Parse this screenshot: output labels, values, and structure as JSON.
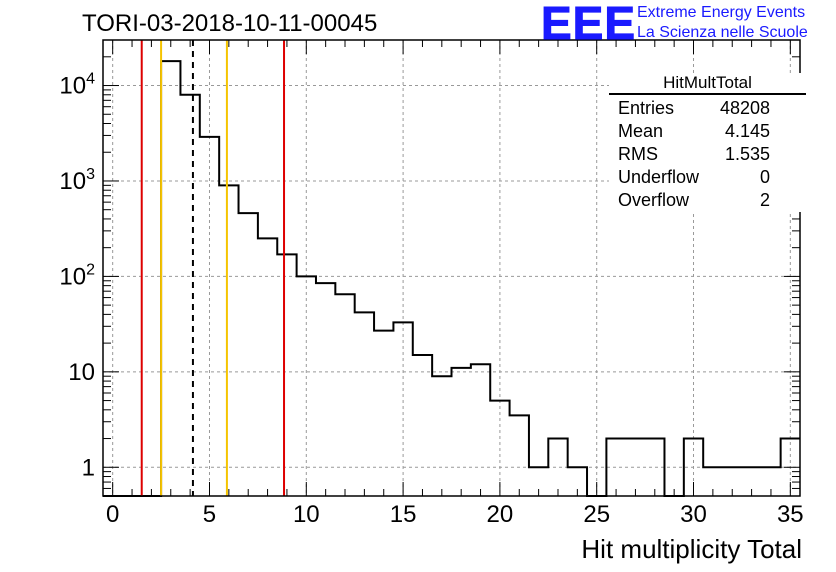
{
  "title": "TORI-03-2018-10-11-00045",
  "logo": {
    "text": "EEE",
    "line1": "Extreme Energy Events",
    "line2": "La Scienza nelle Scuole",
    "color": "#1a1aff"
  },
  "stats_box": {
    "name": "HitMultTotal",
    "rows": [
      {
        "label": "Entries",
        "value": "48208"
      },
      {
        "label": "Mean",
        "value": "4.145"
      },
      {
        "label": "RMS",
        "value": "1.535"
      },
      {
        "label": "Underflow",
        "value": "0"
      },
      {
        "label": "Overflow",
        "value": "2"
      }
    ]
  },
  "chart_data": {
    "type": "histogram",
    "title": "TORI-03-2018-10-11-00045",
    "xlabel": "Hit multiplicity Total",
    "ylabel": "",
    "xlim": [
      -0.5,
      35.5
    ],
    "ylim": [
      0.5,
      30000
    ],
    "log_y": true,
    "grid": true,
    "bin_width": 1,
    "bin_edges_start": -0.5,
    "values": [
      0,
      0,
      0,
      18000,
      8000,
      2900,
      900,
      460,
      250,
      170,
      100,
      85,
      65,
      42,
      27,
      33,
      15,
      9,
      11,
      12,
      5,
      3.5,
      1,
      2,
      1,
      0,
      2,
      2,
      2,
      0,
      2,
      1,
      1,
      1,
      1,
      2
    ],
    "x_ticks": [
      "0",
      "5",
      "10",
      "15",
      "20",
      "25",
      "30",
      "35"
    ],
    "y_ticks": [
      1,
      10,
      100,
      1000,
      10000
    ],
    "vertical_lines": [
      {
        "x": 1.5,
        "color": "#dd0000",
        "style": "solid"
      },
      {
        "x": 2.5,
        "color": "#f5c400",
        "style": "solid"
      },
      {
        "x": 4.145,
        "color": "#000000",
        "style": "dashed"
      },
      {
        "x": 5.9,
        "color": "#f5c400",
        "style": "solid"
      },
      {
        "x": 8.85,
        "color": "#dd0000",
        "style": "solid"
      }
    ]
  }
}
